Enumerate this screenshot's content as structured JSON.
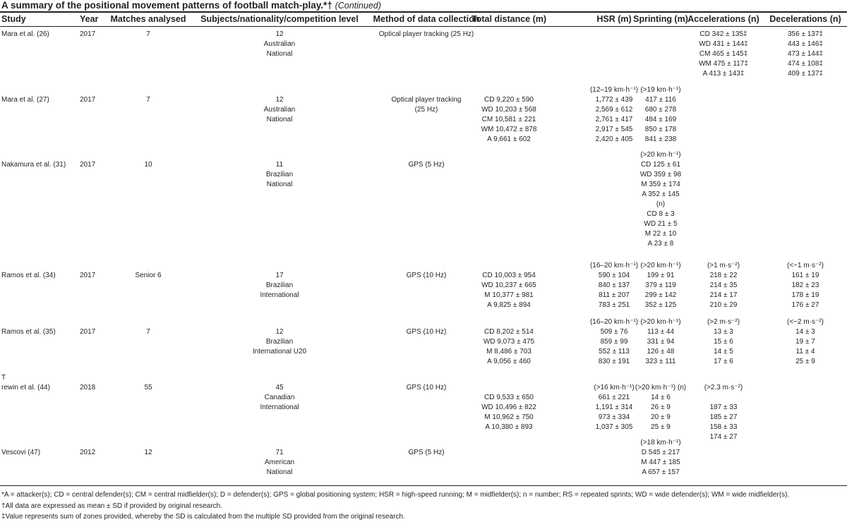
{
  "title": {
    "main": "A summary of the positional movement patterns of football match-play.*†",
    "continued": "(Continued)"
  },
  "headers": {
    "study": "Study",
    "year": "Year",
    "matches": "Matches analysed",
    "subjects": "Subjects/nationality/competition level",
    "method": "Method of data collection",
    "total": "Total distance (m)",
    "hsr": "HSR (m)",
    "sprinting": "Sprinting (m)",
    "accelerations": "Accelerations (n)",
    "decelerations": "Decelerations (n)"
  },
  "rows": [
    {
      "study": [
        "Mara et al. (26)"
      ],
      "year": [
        "2017"
      ],
      "matches": [
        "7"
      ],
      "subjects": [
        "12",
        "Australian",
        "National"
      ],
      "method": [
        "Optical player tracking (25 Hz)"
      ],
      "total": [],
      "hsr": [],
      "sprinting": [],
      "accelerations": [
        "CD 342 ± 135‡",
        "WD 431 ± 144‡",
        "CM 465 ± 145‡",
        "WM 475 ± 117‡",
        "A 413 ± 143‡"
      ],
      "decelerations": [
        "356 ± 137‡",
        "443 ± 146‡",
        "473 ± 144‡",
        "474 ± 108‡",
        "409 ± 137‡"
      ]
    },
    {
      "study": [
        "",
        "Mara et al. (27)"
      ],
      "year": [
        "",
        "2017"
      ],
      "matches": [
        "",
        "7"
      ],
      "subjects": [
        "",
        "12",
        "Australian",
        "National"
      ],
      "method": [
        "",
        "Optical player tracking",
        "(25 Hz)"
      ],
      "total": [
        "",
        "CD 9,220 ± 590",
        "WD 10,203 ± 568",
        "CM 10,581 ± 221",
        "WM 10,472 ± 878",
        "A 9,661 ± 602"
      ],
      "hsr": [
        "(12–19 km·h⁻¹)",
        "1,772 ± 439",
        "2,569 ± 612",
        "2,761 ± 417",
        "2,917 ± 545",
        "2,420 ± 405"
      ],
      "sprinting": [
        "(>19 km·h⁻¹)",
        "417 ± 116",
        "680 ± 278",
        "484 ± 169",
        "850 ± 178",
        "841 ± 238"
      ],
      "accelerations": [],
      "decelerations": []
    },
    {
      "study": [
        "",
        "Nakamura et al. (31)"
      ],
      "year": [
        "",
        "2017"
      ],
      "matches": [
        "",
        "10"
      ],
      "subjects": [
        "",
        "11",
        "Brazilian",
        "National"
      ],
      "method": [
        "",
        "GPS (5 Hz)"
      ],
      "total": [],
      "hsr": [],
      "sprinting": [
        "(>20 km·h⁻¹)",
        "CD 125 ± 61",
        "WD 359 ± 98",
        "M 359 ± 174",
        "A 352 ± 145",
        "(n)",
        "CD 8 ± 3",
        "WD 21 ± 5",
        "M 22 ± 10",
        "A 23 ± 8"
      ],
      "accelerations": [],
      "decelerations": []
    },
    {
      "study": [
        "",
        "Ramos et al. (34)"
      ],
      "year": [
        "",
        "2017"
      ],
      "matches": [
        "",
        "Senior 6"
      ],
      "subjects": [
        "",
        "17",
        "Brazilian",
        "International"
      ],
      "method": [
        "",
        "GPS (10 Hz)"
      ],
      "total": [
        "",
        "CD 10,003 ± 954",
        "WD 10,237 ± 665",
        "M 10,377 ± 981",
        "A 9,825 ± 894"
      ],
      "hsr": [
        "(16–20 km·h⁻¹)",
        "590 ± 104",
        "840 ± 137",
        "811 ± 207",
        "783 ± 251"
      ],
      "sprinting": [
        "(>20 km·h⁻¹)",
        "199 ± 91",
        "379 ± 119",
        "299 ± 142",
        "352 ± 125"
      ],
      "accelerations": [
        "(>1 m·s⁻²)",
        "218 ± 22",
        "214 ± 35",
        "214 ± 17",
        "210 ± 29"
      ],
      "decelerations": [
        "(<−1 m·s⁻²)",
        "161 ± 19",
        "182 ± 23",
        "178 ± 19",
        "176 ± 27"
      ]
    },
    {
      "study": [
        "",
        "Ramos et al. (35)"
      ],
      "year": [
        "",
        "2017"
      ],
      "matches": [
        "",
        "7"
      ],
      "subjects": [
        "",
        "12",
        "Brazilian",
        "International U20"
      ],
      "method": [
        "",
        "GPS (10 Hz)"
      ],
      "total": [
        "",
        "CD 8,202 ± 514",
        "WD 9,073 ± 475",
        "M 8,486 ± 703",
        "A 9,056 ± 460"
      ],
      "hsr": [
        "(16–20 km·h⁻¹)",
        "509 ± 76",
        "859 ± 99",
        "552 ± 113",
        "830 ± 191"
      ],
      "sprinting": [
        "(>20 km·h⁻¹)",
        "113 ± 44",
        "331 ± 94",
        "126 ± 48",
        "323 ± 111"
      ],
      "accelerations": [
        "(>2 m·s⁻²)",
        "13 ± 3",
        "15 ± 6",
        "14 ± 5",
        "17 ± 6"
      ],
      "decelerations": [
        "(<−2 m·s⁻²)",
        "14 ± 3",
        "19 ± 7",
        "11 ± 4",
        "25 ± 9"
      ]
    },
    {
      "study": [
        "T",
        "rewin et al. (44)"
      ],
      "year": [
        "",
        "2018"
      ],
      "matches": [
        "",
        "55"
      ],
      "subjects": [
        "",
        "45",
        "Canadian",
        "International"
      ],
      "method": [
        "",
        "GPS (10 Hz)"
      ],
      "total": [
        "",
        "",
        "CD 9,533 ± 650",
        "WD 10,496 ± 822",
        "M 10,962 ± 750",
        "A 10,380 ± 893"
      ],
      "hsr": [
        "",
        "(>16 km·h⁻¹)",
        "661 ± 221",
        "1,191 ± 314",
        "973 ± 334",
        "1,037 ± 305"
      ],
      "sprinting": [
        "",
        "(>20 km·h⁻¹) (n)",
        "14 ± 6",
        "26 ± 9",
        "20 ± 9",
        "25 ± 9"
      ],
      "accelerations": [
        "",
        "(>2.3 m·s⁻²)",
        "",
        "187 ± 33",
        "185 ± 27",
        "158 ± 33",
        "174 ± 27"
      ],
      "decelerations": []
    },
    {
      "study": [
        "",
        "Vescovi (47)"
      ],
      "year": [
        "",
        "2012"
      ],
      "matches": [
        "",
        "12"
      ],
      "subjects": [
        "",
        "71",
        "American",
        "National"
      ],
      "method": [
        "",
        "GPS (5 Hz)"
      ],
      "total": [],
      "hsr": [],
      "sprinting": [
        "(>18 km·h⁻¹)",
        "D 545 ± 217",
        "M 447 ± 185",
        "A 657 ± 157"
      ],
      "accelerations": [],
      "decelerations": []
    }
  ],
  "footnotes": [
    "*A = attacker(s); CD = central defender(s); CM = central midfielder(s); D = defender(s); GPS = global positioning system; HSR = high-speed running; M = midfielder(s); n = number; RS = repeated sprints; WD = wide defender(s); WM = wide midfielder(s).",
    "†All data are expressed as mean ± SD if provided by original research.",
    "‡Value represents sum of zones provided, whereby the SD is calculated from the multiple SD provided from the original research."
  ]
}
